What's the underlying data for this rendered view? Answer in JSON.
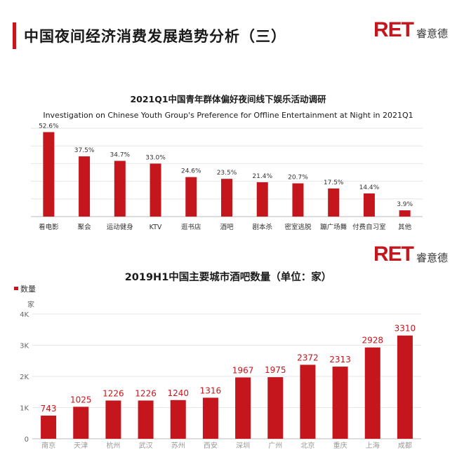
{
  "header": {
    "title": "中国夜间经济消费发展趋势分析（三）",
    "logo_mark": "RET",
    "logo_text": "睿意德",
    "accent_color": "#c4161c"
  },
  "chart_data": [
    {
      "type": "bar",
      "title": "2021Q1中国青年群体偏好夜间线下娱乐活动调研",
      "subtitle": "Investigation on Chinese Youth Group's Preference for Offline Entertainment at Night in 2021Q1",
      "categories": [
        "看电影",
        "聚会",
        "运动健身",
        "KTV",
        "逛书店",
        "酒吧",
        "剧本杀",
        "密室逃脱",
        "蹦广场舞",
        "付费自习室",
        "其他"
      ],
      "values": [
        52.6,
        37.5,
        34.7,
        33.0,
        24.6,
        23.5,
        21.4,
        20.7,
        17.5,
        14.4,
        3.9
      ],
      "value_labels": [
        "52.6%",
        "37.5%",
        "34.7%",
        "33.0%",
        "24.6%",
        "23.5%",
        "21.4%",
        "20.7%",
        "17.5%",
        "14.4%",
        "3.9%"
      ],
      "ylim": [
        0,
        55
      ],
      "grid": true,
      "color": "#c4161c"
    },
    {
      "type": "bar",
      "title": "2019H1中国主要城市酒吧数量（单位：家）",
      "legend": [
        "数量"
      ],
      "legend_position": "top-left",
      "yunit": "家",
      "categories": [
        "南京",
        "天津",
        "杭州",
        "武汉",
        "苏州",
        "西安",
        "深圳",
        "广州",
        "北京",
        "重庆",
        "上海",
        "成都"
      ],
      "values": [
        743,
        1025,
        1226,
        1226,
        1240,
        1316,
        1967,
        1975,
        2372,
        2313,
        2928,
        3310
      ],
      "value_labels": [
        "743",
        "1025",
        "1226",
        "1226",
        "1240",
        "1316",
        "1967",
        "1975",
        "2372",
        "2313",
        "2928",
        "3310"
      ],
      "yticks": [
        0,
        1000,
        2000,
        3000,
        4000
      ],
      "ytick_labels": [
        "0",
        "1K",
        "2K",
        "3K",
        "4K"
      ],
      "ylim": [
        0,
        4000
      ],
      "grid": true,
      "color": "#c4161c"
    }
  ]
}
